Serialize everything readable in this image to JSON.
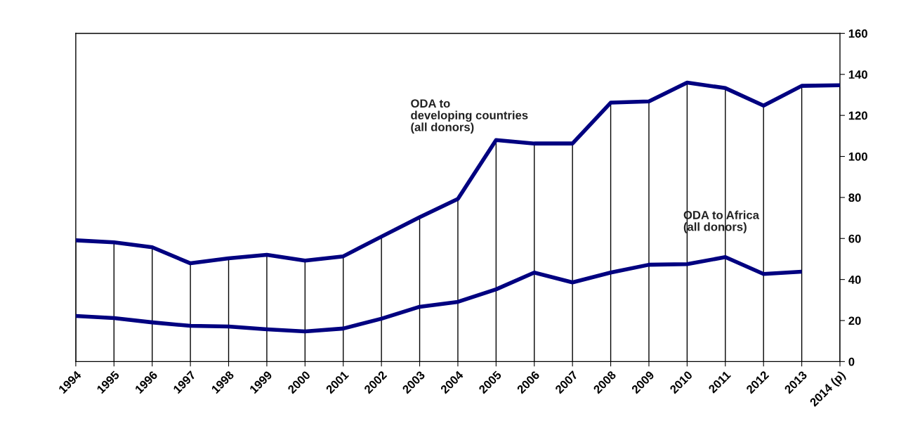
{
  "chart_data": {
    "type": "line",
    "categories": [
      "1994",
      "1995",
      "1996",
      "1997",
      "1998",
      "1999",
      "2000",
      "2001",
      "2002",
      "2003",
      "2004",
      "2005",
      "2006",
      "2007",
      "2008",
      "2009",
      "2010",
      "2011",
      "2012",
      "2013",
      "2014 (p)"
    ],
    "series": [
      {
        "name": "ODA to\ndeveloping countries\n(all donors)",
        "color": "#000080",
        "values": [
          59.1,
          58.1,
          55.7,
          47.9,
          50.3,
          52,
          49.2,
          51.3,
          60.9,
          70.4,
          79.3,
          108,
          106.3,
          106.3,
          126.2,
          126.8,
          136,
          133.3,
          124.8,
          134.4,
          134.7
        ]
      },
      {
        "name": "ODA to Africa\n(all donors)",
        "color": "#000080",
        "values": [
          22.2,
          21.2,
          19.1,
          17.4,
          17.1,
          15.7,
          14.7,
          16.1,
          20.9,
          26.7,
          29.1,
          35.2,
          43.4,
          38.6,
          43.4,
          47.2,
          47.5,
          50.9,
          42.7,
          43.8,
          null
        ]
      }
    ],
    "ylim": [
      0,
      160
    ],
    "yticks": [
      0,
      20,
      40,
      60,
      80,
      100,
      120,
      140,
      160
    ],
    "grid": "x",
    "legend": false,
    "marker": "none",
    "line_style": "solid"
  }
}
